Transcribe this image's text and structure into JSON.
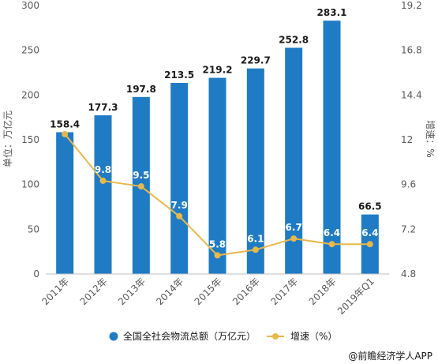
{
  "chart_data": {
    "type": "bar",
    "categories": [
      "2011年",
      "2012年",
      "2013年",
      "2014年",
      "2015年",
      "2016年",
      "2017年",
      "2018年",
      "2019年Q1"
    ],
    "series": [
      {
        "name": "全国全社会物流总额（万亿元）",
        "type": "bar",
        "axis": "left",
        "values": [
          158.4,
          177.3,
          197.8,
          213.5,
          219.2,
          229.7,
          252.8,
          283.1,
          66.5
        ],
        "color": "#1F7BC4"
      },
      {
        "name": "增速（%）",
        "type": "line",
        "axis": "right",
        "values": [
          12.3,
          9.8,
          9.5,
          7.9,
          5.8,
          6.1,
          6.7,
          6.4,
          6.4
        ],
        "labels": [
          "",
          "9.8",
          "9.5",
          "7.9",
          "5.8",
          "6.1",
          "6.7",
          "6.4",
          "6.4"
        ],
        "color": "#E8B84A"
      }
    ],
    "ylabel": "单位：万亿元",
    "y2label": "增速：%",
    "ylim": [
      0,
      300
    ],
    "y2lim": [
      4.8,
      19.2
    ],
    "yticks": [
      "0",
      "50",
      "100",
      "150",
      "200",
      "250",
      "300"
    ],
    "y2ticks": [
      "4.8",
      "7.2",
      "9.6",
      "12",
      "14.4",
      "16.8",
      "19.2"
    ],
    "grid": false,
    "legend_position": "bottom"
  },
  "legend": {
    "bar_label": "全国全社会物流总额（万亿元）",
    "line_label": "增速（%）"
  },
  "credit": "@前瞻经济学人APP"
}
